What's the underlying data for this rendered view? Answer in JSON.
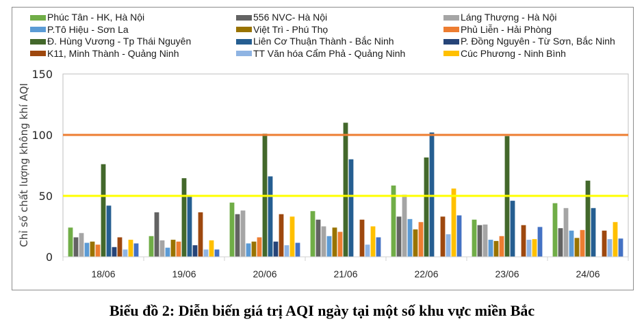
{
  "chart_data": {
    "type": "bar",
    "title": "",
    "xlabel": "",
    "ylabel": "Chỉ số chất lượng không khí AQI",
    "ylim": [
      0,
      150
    ],
    "yticks": [
      0,
      50,
      100,
      150
    ],
    "grid": false,
    "legend_position": "top",
    "categories": [
      "18/06",
      "19/06",
      "20/06",
      "21/06",
      "22/06",
      "23/06",
      "24/06"
    ],
    "reference_lines": [
      {
        "value": 100,
        "color": "#ED7D31"
      },
      {
        "value": 50,
        "color": "#FFFF00"
      }
    ],
    "series": [
      {
        "name": "Phúc Tân - HK, Hà Nội",
        "color": "#70AD47",
        "values": [
          24,
          17,
          44.5,
          37.5,
          58.5,
          30.5,
          44
        ]
      },
      {
        "name": "556 NVC- Hà Nội",
        "color": "#636363",
        "values": [
          16,
          36.5,
          35,
          30.5,
          33,
          26,
          23.5
        ]
      },
      {
        "name": "Láng Thượng - Hà Nội",
        "color": "#A5A5A5",
        "values": [
          19.5,
          13.5,
          38,
          25,
          51,
          26.5,
          40
        ]
      },
      {
        "name": "P.Tô Hiệu - Sơn La",
        "color": "#5B9BD5",
        "values": [
          11.5,
          7.5,
          11,
          17,
          31,
          14,
          21.5
        ]
      },
      {
        "name": "Việt Trì  - Phú Thọ",
        "color": "#997300",
        "values": [
          12.5,
          14,
          12.5,
          24,
          22.5,
          13,
          15.5
        ]
      },
      {
        "name": "Phủ Liễn - Hải Phòng",
        "color": "#ED7D31",
        "values": [
          10,
          12.5,
          16,
          20.5,
          28.5,
          17,
          22
        ]
      },
      {
        "name": "Đ. Hùng Vương - Tp Thái Nguyên",
        "color": "#43682B",
        "values": [
          76,
          64.5,
          101,
          110,
          81.5,
          99,
          62.5
        ]
      },
      {
        "name": "Liên Cơ Thuận Thành - Bắc Ninh",
        "color": "#255E91",
        "values": [
          42,
          50.5,
          66,
          80,
          102,
          46,
          40
        ]
      },
      {
        "name": "P. Đồng Nguyên - Từ Sơn, Bắc Ninh",
        "color": "#264478",
        "values": [
          8,
          9.5,
          12.5,
          0,
          0,
          0,
          0
        ]
      },
      {
        "name": "K11, Minh Thành - Quảng Ninh",
        "color": "#9E480E",
        "values": [
          16,
          36.5,
          35,
          30.5,
          33,
          26,
          21.5
        ]
      },
      {
        "name": "TT Văn hóa Cẩm Phả - Quảng Ninh",
        "color": "#8FB4E3",
        "values": [
          6,
          6,
          9.5,
          10,
          18.5,
          14,
          14.5
        ]
      },
      {
        "name": "Cúc Phương - Ninh Bình",
        "color": "#FFC000",
        "values": [
          14,
          13.5,
          33,
          25,
          56,
          14.5,
          28.5
        ]
      },
      {
        "name": "",
        "color": "#4472C4",
        "values": [
          11,
          6,
          11.5,
          16,
          34,
          24.5,
          15
        ]
      }
    ]
  },
  "caption": "Biểu đồ 2: Diễn biến giá trị AQI ngày tại một số khu vực miền Bắc"
}
